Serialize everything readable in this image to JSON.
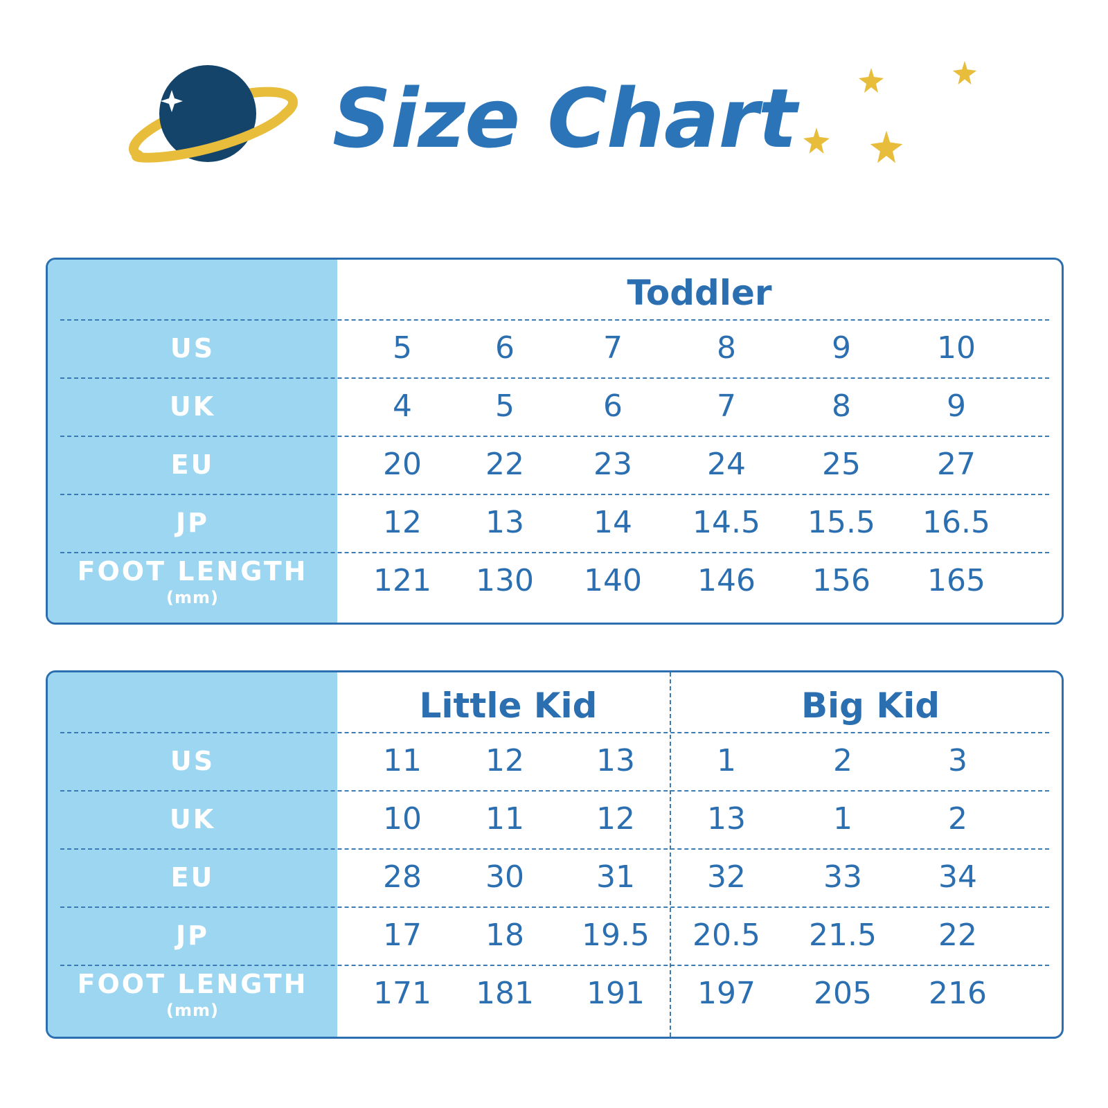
{
  "header": {
    "title": "Size Chart",
    "logo_icon": "ringed-planet-icon",
    "decoration_icon": "star-icon",
    "colors": {
      "title": "#2b74b8",
      "planet": "#15446b",
      "ring": "#e8bd3c",
      "star": "#e8bd3c"
    }
  },
  "colors": {
    "label_bg": "#9cd6f0",
    "border": "#2b6fb0",
    "value_text": "#2b6fb0",
    "label_text": "#ffffff"
  },
  "tables": [
    {
      "groups": [
        {
          "name": "Toddler"
        }
      ],
      "rows": [
        {
          "label": "US",
          "sub": "",
          "values": [
            "5",
            "6",
            "7",
            "8",
            "9",
            "10"
          ]
        },
        {
          "label": "UK",
          "sub": "",
          "values": [
            "4",
            "5",
            "6",
            "7",
            "8",
            "9"
          ]
        },
        {
          "label": "EU",
          "sub": "",
          "values": [
            "20",
            "22",
            "23",
            "24",
            "25",
            "27"
          ]
        },
        {
          "label": "JP",
          "sub": "",
          "values": [
            "12",
            "13",
            "14",
            "14.5",
            "15.5",
            "16.5"
          ]
        },
        {
          "label": "FOOT LENGTH",
          "sub": "(mm)",
          "values": [
            "121",
            "130",
            "140",
            "146",
            "156",
            "165"
          ]
        }
      ]
    },
    {
      "groups": [
        {
          "name": "Little Kid"
        },
        {
          "name": "Big Kid"
        }
      ],
      "rows": [
        {
          "label": "US",
          "sub": "",
          "values": [
            "11",
            "12",
            "13",
            "1",
            "2",
            "3"
          ]
        },
        {
          "label": "UK",
          "sub": "",
          "values": [
            "10",
            "11",
            "12",
            "13",
            "1",
            "2"
          ]
        },
        {
          "label": "EU",
          "sub": "",
          "values": [
            "28",
            "30",
            "31",
            "32",
            "33",
            "34"
          ]
        },
        {
          "label": "JP",
          "sub": "",
          "values": [
            "17",
            "18",
            "19.5",
            "20.5",
            "21.5",
            "22"
          ]
        },
        {
          "label": "FOOT LENGTH",
          "sub": "(mm)",
          "values": [
            "171",
            "181",
            "191",
            "197",
            "205",
            "216"
          ]
        }
      ]
    }
  ]
}
